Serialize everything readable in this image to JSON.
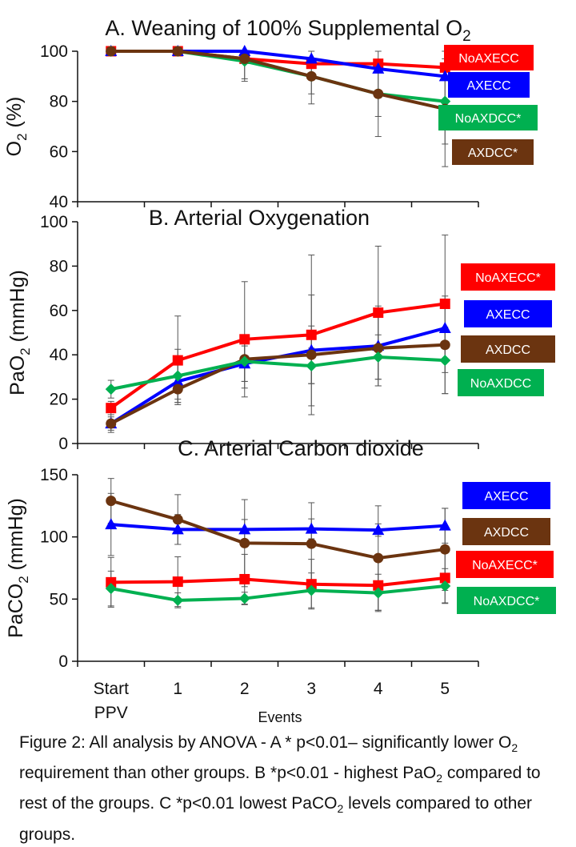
{
  "chart_data": [
    {
      "type": "line",
      "title_main": "A. Weaning of 100% Supplemental O",
      "title_sub": "2",
      "ylabel_main": "O",
      "ylabel_sub": "2",
      "ylabel_rest": " (%)",
      "ylim": [
        40,
        100
      ],
      "yticks": [
        40,
        60,
        80,
        100
      ],
      "xlim": [
        -0.5,
        5.5
      ],
      "x": [
        0,
        1,
        2,
        3,
        4,
        5
      ],
      "series": [
        {
          "name": "NoAXECC",
          "color": "#ff0000",
          "marker": "square",
          "values": [
            100,
            100,
            97,
            95,
            95,
            93.5
          ],
          "error": [
            0,
            0,
            0,
            0,
            0,
            0
          ]
        },
        {
          "name": "AXECC",
          "color": "#0000ff",
          "marker": "triangle",
          "values": [
            100,
            100,
            100,
            97,
            93,
            90
          ],
          "error": [
            0,
            0,
            0,
            0,
            0,
            0
          ]
        },
        {
          "name": "NoAXDCC*",
          "color": "#00b050",
          "marker": "diamond",
          "values": [
            100,
            100,
            96,
            90,
            83,
            80
          ],
          "error": [
            0,
            0,
            8,
            7,
            9,
            17
          ]
        },
        {
          "name": "AXDCC*",
          "color": "#6b3410",
          "marker": "circle",
          "values": [
            100,
            100,
            97,
            90,
            83,
            77
          ],
          "error": [
            0,
            0,
            8,
            11,
            17,
            23
          ]
        }
      ],
      "legend": [
        {
          "label": "NoAXECC",
          "color": "#ff0000"
        },
        {
          "label": "AXECC",
          "color": "#0000ff"
        },
        {
          "label": "NoAXDCC*",
          "color": "#00b050"
        },
        {
          "label": "AXDCC*",
          "color": "#6b3410"
        }
      ]
    },
    {
      "type": "line",
      "title_main": "B. Arterial Oxygenation",
      "title_sub": "",
      "ylabel_main": "PaO",
      "ylabel_sub": "2",
      "ylabel_rest": " (mmHg)",
      "ylim": [
        0,
        100
      ],
      "yticks": [
        0,
        20,
        40,
        60,
        80,
        100
      ],
      "xlim": [
        -0.5,
        5.5
      ],
      "x": [
        0,
        1,
        2,
        3,
        4,
        5
      ],
      "series": [
        {
          "name": "NoAXECC*",
          "color": "#ff0000",
          "marker": "square",
          "values": [
            16,
            37.5,
            47,
            49,
            59,
            63
          ],
          "error": [
            3,
            20,
            26,
            36,
            30,
            31
          ]
        },
        {
          "name": "AXECC",
          "color": "#0000ff",
          "marker": "triangle",
          "values": [
            9,
            28,
            36,
            42,
            44,
            52
          ],
          "error": [
            3,
            8,
            8,
            25,
            18,
            0
          ]
        },
        {
          "name": "AXDCC",
          "color": "#6b3410",
          "marker": "circle",
          "values": [
            9,
            24.5,
            38,
            40,
            43,
            44.5
          ],
          "error": [
            4,
            6,
            10,
            13,
            17,
            22
          ]
        },
        {
          "name": "NoAXDCC",
          "color": "#00b050",
          "marker": "diamond",
          "values": [
            24.5,
            30.5,
            37,
            35,
            39,
            37.5
          ],
          "error": [
            4,
            12,
            12,
            8,
            10,
            15
          ]
        }
      ],
      "legend": [
        {
          "label": "NoAXECC*",
          "color": "#ff0000"
        },
        {
          "label": "AXECC",
          "color": "#0000ff"
        },
        {
          "label": "AXDCC",
          "color": "#6b3410"
        },
        {
          "label": "NoAXDCC",
          "color": "#00b050"
        }
      ]
    },
    {
      "type": "line",
      "title_main": "C. Arterial Carbon dioxide",
      "title_sub": "",
      "ylabel_main": "PaCO",
      "ylabel_sub": "2",
      "ylabel_rest": " (mmHg)",
      "ylim": [
        0,
        150
      ],
      "yticks": [
        0,
        50,
        100,
        150
      ],
      "xlim": [
        -0.5,
        5.5
      ],
      "x": [
        0,
        1,
        2,
        3,
        4,
        5
      ],
      "xtick_labels": [
        [
          "Start",
          "PPV"
        ],
        [
          "1"
        ],
        [
          "2"
        ],
        [
          "3"
        ],
        [
          "4"
        ],
        [
          "5"
        ]
      ],
      "xlabel": "Events",
      "series": [
        {
          "name": "AXECC",
          "color": "#0000ff",
          "marker": "triangle",
          "values": [
            110,
            106,
            106,
            106.5,
            105.5,
            109
          ],
          "error": [
            25,
            12,
            8,
            8,
            5,
            14
          ]
        },
        {
          "name": "AXDCC",
          "color": "#6b3410",
          "marker": "circle",
          "values": [
            129,
            114,
            95,
            94.5,
            83,
            90
          ],
          "error": [
            18,
            20,
            35,
            33,
            42,
            33
          ]
        },
        {
          "name": "NoAXECC*",
          "color": "#ff0000",
          "marker": "square",
          "values": [
            63.5,
            64,
            66,
            62,
            61,
            67
          ],
          "error": [
            20,
            20,
            20,
            20,
            20,
            20
          ]
        },
        {
          "name": "NoAXDCC*",
          "color": "#00b050",
          "marker": "diamond",
          "values": [
            58.5,
            49,
            50.5,
            57,
            55,
            60.5
          ],
          "error": [
            14,
            6,
            5,
            14,
            15,
            14
          ]
        }
      ],
      "legend": [
        {
          "label": "AXECC",
          "color": "#0000ff"
        },
        {
          "label": "AXDCC",
          "color": "#6b3410"
        },
        {
          "label": "NoAXECC*",
          "color": "#ff0000"
        },
        {
          "label": "NoAXDCC*",
          "color": "#00b050"
        }
      ]
    }
  ],
  "caption": {
    "p1": "Figure 2: All analysis by ANOVA - A * p<0.01– significantly lower O",
    "s1": "2",
    "p2": " requirement than other groups. B *p<0.01 - highest PaO",
    "s2": "2",
    "p3": " compared to rest of the groups. C *p<0.01 lowest PaCO",
    "s3": "2",
    "p4": " levels compared to other groups."
  }
}
